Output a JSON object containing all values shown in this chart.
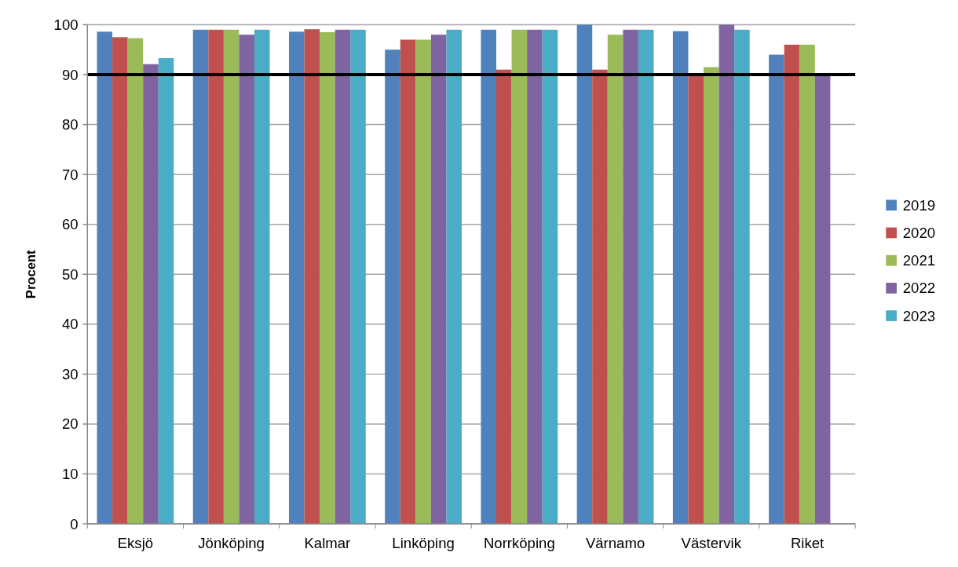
{
  "chart_data": {
    "type": "bar",
    "ylabel": "Procent",
    "categories": [
      "Eksjö",
      "Jönköping",
      "Kalmar",
      "Linköping",
      "Norrköping",
      "Värnamo",
      "Västervik",
      "Riket"
    ],
    "series": [
      {
        "name": "2019",
        "color": "#4f81bd",
        "values": [
          98.6,
          99,
          98.6,
          95,
          99,
          100,
          98.7,
          94
        ]
      },
      {
        "name": "2020",
        "color": "#c0504d",
        "values": [
          97.5,
          99,
          99.1,
          97,
          91,
          91,
          90,
          96
        ]
      },
      {
        "name": "2021",
        "color": "#9bbb59",
        "values": [
          97.3,
          99,
          98.5,
          97,
          99,
          98,
          91.5,
          96
        ]
      },
      {
        "name": "2022",
        "color": "#8064a2",
        "values": [
          92.1,
          98,
          99,
          98,
          99,
          99,
          100,
          90
        ]
      },
      {
        "name": "2023",
        "color": "#4bacc6",
        "values": [
          93.3,
          99,
          99,
          99,
          99,
          99,
          99,
          null
        ]
      }
    ],
    "ylim": [
      0,
      100
    ],
    "yticks": [
      0,
      10,
      20,
      30,
      40,
      50,
      60,
      70,
      80,
      90,
      100
    ],
    "grid": "y",
    "legend": "right",
    "ref_lines": [
      {
        "axis": "y",
        "value": 90,
        "color": "#000000"
      }
    ]
  }
}
